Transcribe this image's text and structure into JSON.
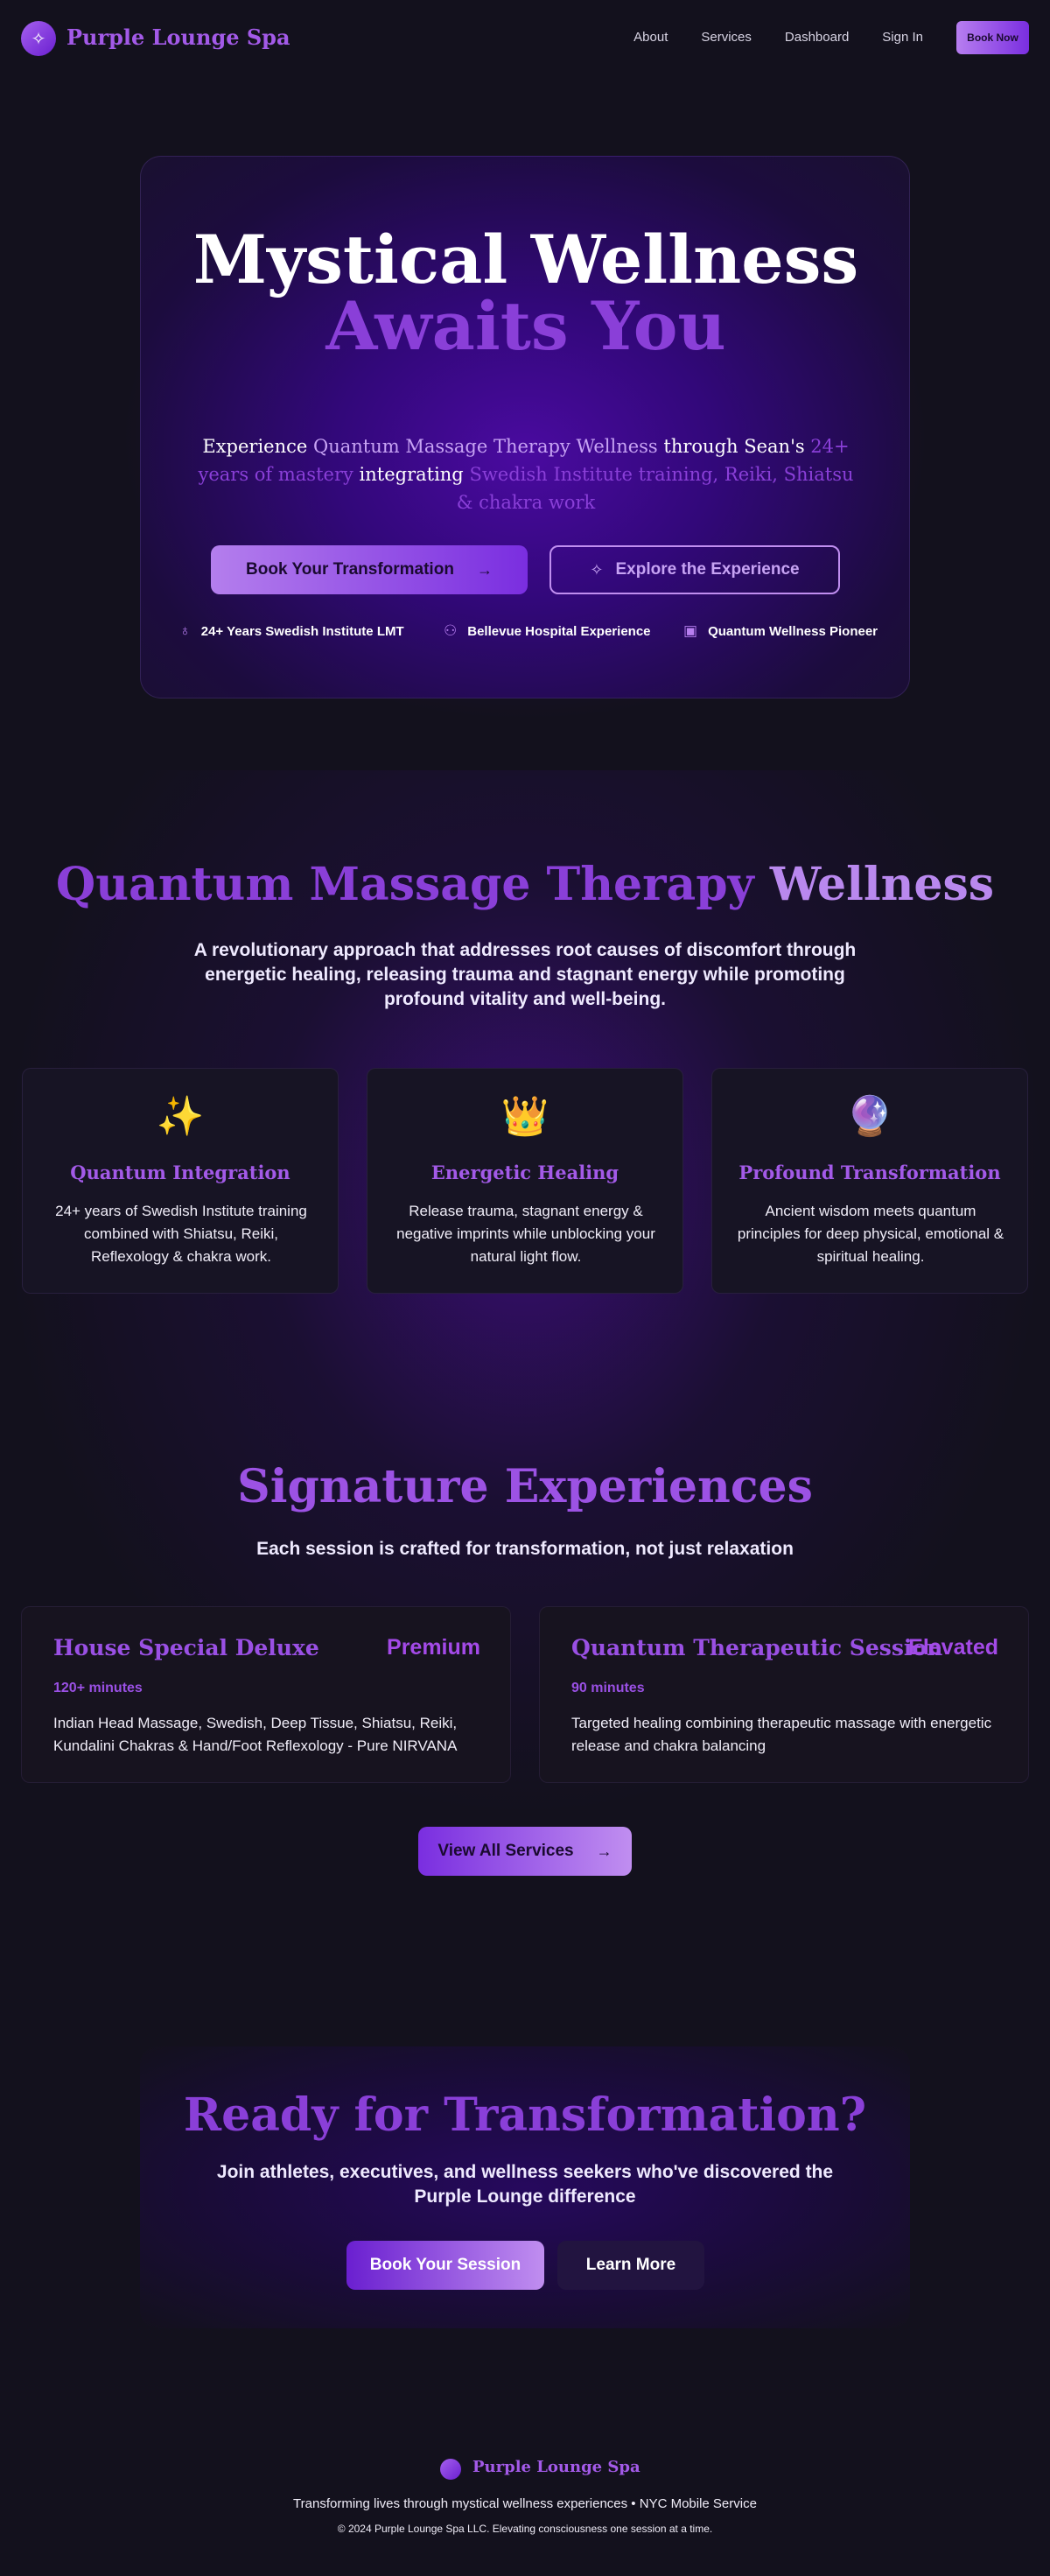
{
  "nav": {
    "brand": "Purple Lounge Spa",
    "links": [
      "About",
      "Services",
      "Dashboard",
      "Sign In"
    ],
    "cta": "Book Now"
  },
  "hero": {
    "title_line1": "Mystical Wellness",
    "title_line2": "Awaits You",
    "subtitle": {
      "p1": "Experience ",
      "h1": "Quantum Massage Therapy Wellness",
      "p2": " through Sean's ",
      "h2": "24+ years of mastery",
      "p3": " integrating ",
      "h3": "Swedish Institute training, Reiki, Shiatsu & chakra work"
    },
    "primary_button": "Book Your Transformation",
    "secondary_button": "Explore the Experience",
    "credentials": [
      "24+ Years Swedish Institute LMT",
      "Bellevue Hospital Experience",
      "Quantum Wellness Pioneer"
    ]
  },
  "quantum": {
    "title_main": "Quantum Massage Therapy ",
    "title_accent": "Wellness",
    "subtitle": "A revolutionary approach that addresses root causes of discomfort through energetic healing, releasing trauma and stagnant energy while promoting profound vitality and well-being.",
    "cards": [
      {
        "emoji": "✨",
        "title": "Quantum Integration",
        "text": "24+ years of Swedish Institute training combined with Shiatsu, Reiki, Reflexology & chakra work."
      },
      {
        "emoji": "👑",
        "title": "Energetic Healing",
        "text": "Release trauma, stagnant energy & negative imprints while unblocking your natural light flow."
      },
      {
        "emoji": "🔮",
        "title": "Profound Transformation",
        "text": "Ancient wisdom meets quantum principles for deep physical, emotional & spiritual healing."
      }
    ]
  },
  "signature": {
    "title": "Signature Experiences",
    "subtitle": "Each session is crafted for transformation, not just relaxation",
    "services": [
      {
        "name": "House Special Deluxe",
        "tier": "Premium",
        "duration": "120+ minutes",
        "description": "Indian Head Massage, Swedish, Deep Tissue, Shiatsu, Reiki, Kundalini Chakras & Hand/Foot Reflexology - Pure NIRVANA"
      },
      {
        "name": "Quantum Therapeutic Session",
        "tier": "Elevated",
        "duration": "90 minutes",
        "description": "Targeted healing combining therapeutic massage with energetic release and chakra balancing"
      }
    ],
    "view_all": "View All Services"
  },
  "cta": {
    "title": "Ready for Transformation?",
    "subtitle": "Join athletes, executives, and wellness seekers who've discovered the Purple Lounge difference",
    "primary": "Book Your Session",
    "secondary": "Learn More"
  },
  "footer": {
    "brand": "Purple Lounge Spa",
    "tagline": "Transforming lives through mystical wellness experiences • NYC Mobile Service",
    "copyright": "© 2024 Purple Lounge Spa LLC. Elevating consciousness one session at a time."
  },
  "colors": {
    "background": "#13111d",
    "accent": "#8a3fd8",
    "accent_light": "#c7a3f4"
  }
}
